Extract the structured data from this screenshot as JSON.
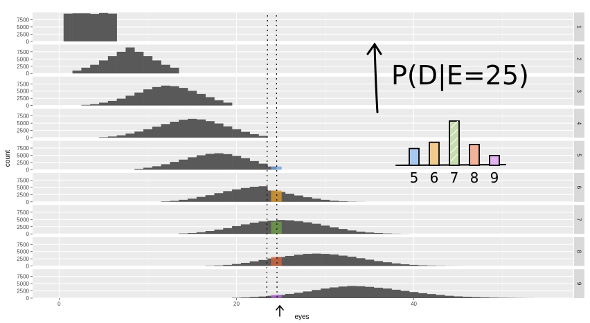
{
  "chart_data": {
    "type": "bar",
    "subtype": "faceted-histogram",
    "title": "",
    "xlabel": "eyes",
    "ylabel": "count",
    "xlim": [
      -3,
      58
    ],
    "ylim": [
      0,
      10000
    ],
    "x_ticks": [
      0,
      20,
      40
    ],
    "y_ticks": [
      0,
      2500,
      5000,
      7500
    ],
    "grid": true,
    "facet_labels": [
      "1",
      "2",
      "3",
      "4",
      "5",
      "6",
      "7",
      "8",
      "9"
    ],
    "reference_lines": [
      24,
      25
    ],
    "highlight_x": 24.5,
    "panels": [
      {
        "label": "1",
        "x": [
          1,
          2,
          3,
          4,
          5,
          6
        ],
        "values": [
          9600,
          9700,
          9700,
          9500,
          9800,
          9600
        ]
      },
      {
        "label": "2",
        "x": [
          2,
          3,
          4,
          5,
          6,
          7,
          8,
          9,
          10,
          11,
          12,
          13
        ],
        "values": [
          1000,
          2000,
          3000,
          4500,
          6000,
          7500,
          9000,
          7500,
          6000,
          4500,
          3000,
          2000
        ]
      },
      {
        "label": "3",
        "x": [
          3,
          4,
          5,
          6,
          7,
          8,
          9,
          10,
          11,
          12,
          13,
          14,
          15,
          16,
          17,
          18,
          19
        ],
        "values": [
          200,
          500,
          1000,
          1600,
          2400,
          3400,
          4500,
          5600,
          6400,
          6900,
          6700,
          6100,
          5100,
          4000,
          2900,
          1800,
          1000
        ]
      },
      {
        "label": "4",
        "x": [
          5,
          6,
          7,
          8,
          9,
          10,
          11,
          12,
          13,
          14,
          15,
          16,
          17,
          18,
          19,
          20,
          21,
          22,
          23
        ],
        "values": [
          150,
          400,
          800,
          1400,
          2100,
          2900,
          3800,
          4700,
          5500,
          6200,
          6500,
          6300,
          5700,
          4900,
          3900,
          2900,
          2000,
          1200,
          600
        ]
      },
      {
        "label": "5",
        "x": [
          9,
          10,
          11,
          12,
          13,
          14,
          15,
          16,
          17,
          18,
          19,
          20,
          21,
          22,
          23,
          24
        ],
        "values": [
          300,
          700,
          1200,
          1900,
          2700,
          3500,
          4300,
          5000,
          5500,
          5700,
          5400,
          4800,
          4000,
          3000,
          2100,
          1100
        ]
      },
      {
        "label": "6",
        "x": [
          12,
          13,
          14,
          15,
          16,
          17,
          18,
          19,
          20,
          21,
          22,
          23,
          24,
          25,
          26,
          27,
          28,
          29,
          30,
          31,
          32,
          33,
          34
        ],
        "values": [
          150,
          350,
          700,
          1100,
          1700,
          2300,
          3000,
          3700,
          4300,
          4800,
          5200,
          5400,
          3900,
          3400,
          2800,
          2200,
          1600,
          1100,
          700,
          400,
          200,
          80,
          30
        ]
      },
      {
        "label": "7",
        "x": [
          14,
          15,
          16,
          17,
          18,
          19,
          20,
          21,
          22,
          23,
          24,
          25,
          26,
          27,
          28,
          29,
          30,
          31,
          32,
          33,
          34,
          35,
          36,
          37,
          38,
          39
        ],
        "values": [
          150,
          300,
          600,
          1000,
          1500,
          2000,
          2700,
          3300,
          3900,
          4300,
          4600,
          4800,
          4700,
          4400,
          4000,
          3500,
          2900,
          2300,
          1700,
          1200,
          800,
          500,
          300,
          150,
          80,
          40
        ]
      },
      {
        "label": "8",
        "x": [
          17,
          18,
          19,
          20,
          21,
          22,
          23,
          24,
          25,
          26,
          27,
          28,
          29,
          30,
          31,
          32,
          33,
          34,
          35,
          36,
          37,
          38,
          39,
          40,
          41,
          42,
          43,
          44,
          45
        ],
        "values": [
          100,
          200,
          400,
          700,
          1100,
          1600,
          2100,
          2600,
          3100,
          3500,
          3900,
          4200,
          4300,
          4200,
          4000,
          3600,
          3200,
          2700,
          2200,
          1700,
          1300,
          900,
          600,
          400,
          250,
          150,
          80,
          40,
          20
        ]
      },
      {
        "label": "9",
        "x": [
          20,
          21,
          22,
          23,
          24,
          25,
          26,
          27,
          28,
          29,
          30,
          31,
          32,
          33,
          34,
          35,
          36,
          37,
          38,
          39,
          40,
          41,
          42,
          43,
          44,
          45,
          46,
          47,
          48,
          49,
          50,
          51,
          52,
          53
        ],
        "values": [
          100,
          200,
          350,
          550,
          800,
          1100,
          1450,
          1850,
          2300,
          2800,
          3300,
          3700,
          4000,
          4200,
          4100,
          3900,
          3600,
          3300,
          2900,
          2500,
          2100,
          1700,
          1400,
          1100,
          800,
          600,
          450,
          320,
          220,
          150,
          100,
          70,
          40,
          20
        ]
      }
    ],
    "highlight_colors": {
      "5": "#6f9fd8",
      "6": "#d99a2b",
      "7": "#6f9b4a",
      "8": "#d2653f",
      "9": "#b06ad0"
    },
    "annotation": {
      "text": "P(D|E=25)",
      "inset_categories": [
        "5",
        "6",
        "7",
        "8",
        "9"
      ],
      "inset_values": [
        0.38,
        0.52,
        1.0,
        0.47,
        0.22
      ],
      "inset_colors": [
        "#a9c8ef",
        "#f0c98e",
        "#c9deb0",
        "#f2b39a",
        "#e4b4f2"
      ]
    }
  },
  "bar_color": "#595959",
  "panel_bg": "#ebebeb",
  "strip_bg": "#d9d9d9"
}
